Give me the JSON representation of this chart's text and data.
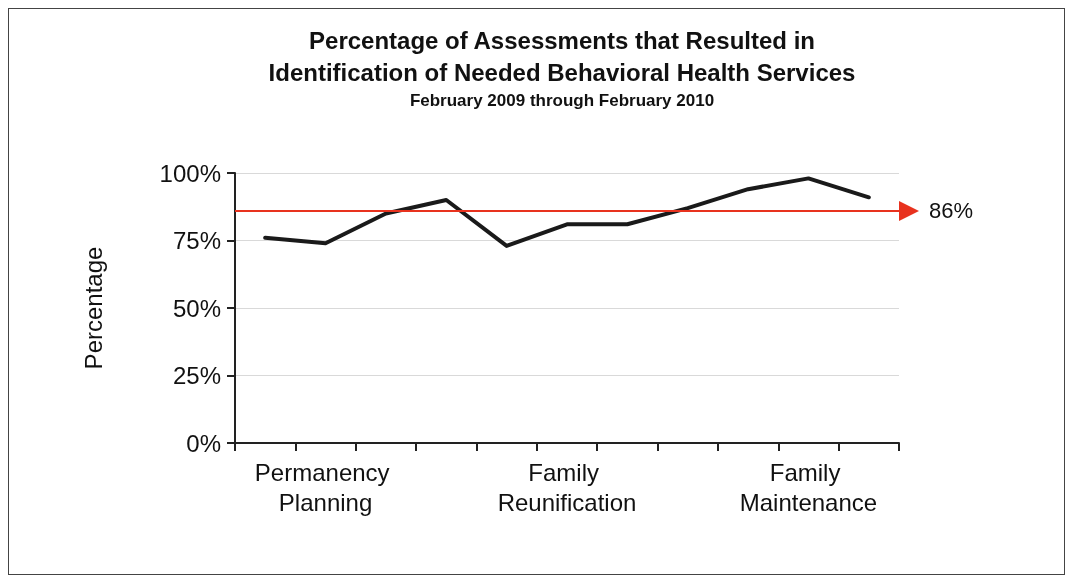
{
  "chart_data": {
    "type": "line",
    "title": "Percentage of Assessments that Resulted in\nIdentification of Needed Behavioral Health Services",
    "subtitle": "February 2009 through February 2010",
    "ylabel": "Percentage",
    "categories": [
      null,
      "Permanency Planning",
      null,
      null,
      null,
      "Family Reunification",
      null,
      null,
      null,
      "Family Maintenance",
      null
    ],
    "series": [
      {
        "color": "#1a1a1a",
        "values": [
          76,
          74,
          85,
          90,
          73,
          81,
          81,
          87,
          94,
          98,
          91
        ]
      }
    ],
    "ylim": [
      0,
      100
    ],
    "yticks": [
      {
        "value": 0,
        "label": "0%"
      },
      {
        "value": 25,
        "label": "25%"
      },
      {
        "value": 50,
        "label": "50%"
      },
      {
        "value": 75,
        "label": "75%"
      },
      {
        "value": 100,
        "label": "100%"
      }
    ],
    "ref_lines": [
      {
        "axis": "y",
        "value": 86,
        "label": "86%",
        "color": "#e8321e"
      }
    ],
    "grid": "y",
    "marker": "none",
    "line_style": "solid"
  }
}
